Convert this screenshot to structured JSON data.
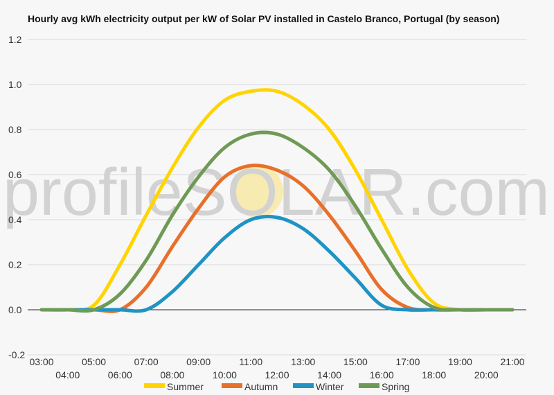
{
  "chart_data": {
    "type": "line",
    "title": "Hourly avg kWh electricity output per kW of Solar PV installed in Castelo Branco, Portugal (by season)",
    "xlabel": "",
    "ylabel": "",
    "ylim": [
      -0.2,
      1.2
    ],
    "yticks": [
      "1.2",
      "1.0",
      "0.8",
      "0.6",
      "0.4",
      "0.2",
      "0.0",
      "-0.2"
    ],
    "x": [
      "03:00",
      "04:00",
      "05:00",
      "06:00",
      "07:00",
      "08:00",
      "09:00",
      "10:00",
      "11:00",
      "12:00",
      "13:00",
      "14:00",
      "15:00",
      "16:00",
      "17:00",
      "18:00",
      "19:00",
      "20:00",
      "21:00"
    ],
    "grid": true,
    "legend_position": "bottom",
    "series": [
      {
        "name": "Summer",
        "color": "#ffd400",
        "values": [
          0,
          0,
          0.02,
          0.2,
          0.42,
          0.63,
          0.81,
          0.93,
          0.97,
          0.97,
          0.91,
          0.8,
          0.62,
          0.4,
          0.18,
          0.03,
          0,
          0,
          0
        ]
      },
      {
        "name": "Autumn",
        "color": "#e8702a",
        "values": [
          0,
          0,
          0,
          0,
          0.1,
          0.28,
          0.45,
          0.59,
          0.64,
          0.62,
          0.55,
          0.42,
          0.26,
          0.09,
          0.01,
          0,
          0,
          0,
          0
        ]
      },
      {
        "name": "Winter",
        "color": "#1f93c4",
        "values": [
          0,
          0,
          0,
          0,
          0,
          0.08,
          0.2,
          0.32,
          0.4,
          0.41,
          0.36,
          0.26,
          0.14,
          0.02,
          0,
          0,
          0,
          0,
          0
        ]
      },
      {
        "name": "Spring",
        "color": "#6f9a55",
        "values": [
          0,
          0,
          0,
          0.07,
          0.22,
          0.42,
          0.59,
          0.72,
          0.78,
          0.78,
          0.72,
          0.62,
          0.46,
          0.27,
          0.1,
          0.01,
          0,
          0,
          0
        ]
      }
    ]
  },
  "watermark": {
    "text": "profileSOLAR.com"
  }
}
